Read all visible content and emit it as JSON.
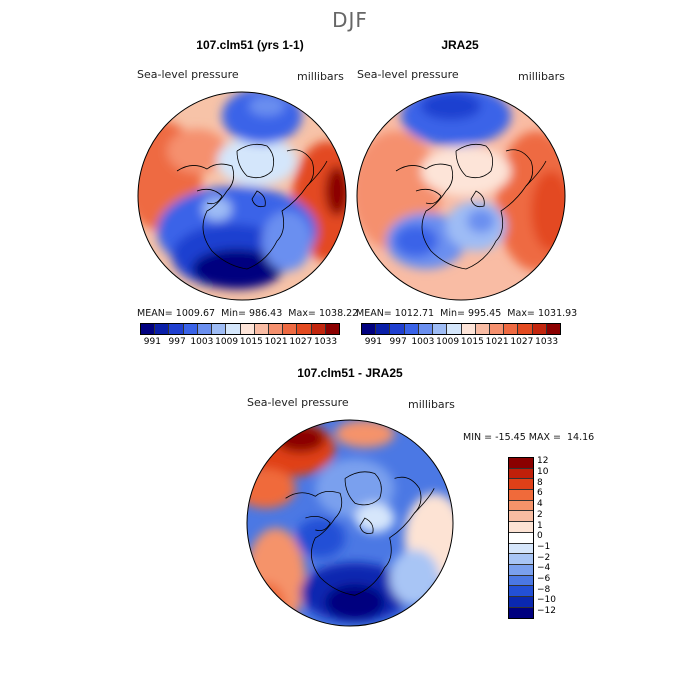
{
  "figure": {
    "season": "DJF"
  },
  "panels": [
    {
      "title": "107.clm51 (yrs 1-1)",
      "variable": "Sea-level pressure",
      "units": "millibars",
      "stats": {
        "mean_label": "MEAN=",
        "mean": "1009.67",
        "min_label": "Min=",
        "min": "986.43",
        "max_label": "Max=",
        "max": "1038.22"
      }
    },
    {
      "title": "JRA25",
      "variable": "Sea-level pressure",
      "units": "millibars",
      "stats": {
        "mean_label": "MEAN=",
        "mean": "1012.71",
        "min_label": "Min=",
        "min": "995.45",
        "max_label": "Max=",
        "max": "1031.93"
      }
    },
    {
      "title": "107.clm51 - JRA25",
      "variable": "Sea-level pressure",
      "units": "millibars",
      "stats": {
        "min_label": "MIN =",
        "min": "-15.45",
        "max_label": "MAX =",
        "max": "14.16"
      }
    }
  ],
  "colorbar_abs": {
    "colors": [
      "#00007f",
      "#0a1fa8",
      "#1f3fd0",
      "#3a63e8",
      "#6a8ff0",
      "#9ebcf5",
      "#d4e6fb",
      "#fde4d8",
      "#f9bca4",
      "#f5906e",
      "#ee6a42",
      "#e34a20",
      "#c2260e",
      "#8b0000"
    ],
    "labels": [
      "991",
      "997",
      "1003",
      "1009",
      "1015",
      "1021",
      "1027",
      "1033"
    ]
  },
  "colorbar_diff": {
    "colors": [
      "#8b0000",
      "#c0200a",
      "#e04018",
      "#f06a3a",
      "#f5936a",
      "#f9bda2",
      "#fde3d4",
      "#ffffff",
      "#d6e6fb",
      "#a8c5f5",
      "#7aa0ee",
      "#4b78e4",
      "#2350d6",
      "#0a28b0",
      "#00007f"
    ],
    "labels": [
      "12",
      "10",
      "8",
      "6",
      "4",
      "2",
      "1",
      "0",
      "−1",
      "−2",
      "−4",
      "−6",
      "−8",
      "−10",
      "−12"
    ]
  }
}
